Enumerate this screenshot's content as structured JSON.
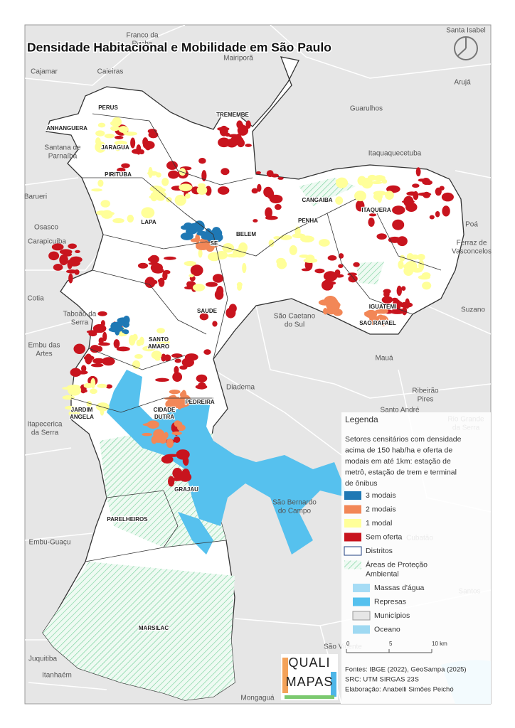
{
  "title": "Densidade Habitacional e Mobilidade em São Paulo",
  "municipalities": [
    {
      "lines": [
        "Franco da",
        "Rocha"
      ]
    },
    {
      "lines": [
        "Santa Isabel"
      ]
    },
    {
      "lines": [
        "Cajamar"
      ]
    },
    {
      "lines": [
        "Caieiras"
      ]
    },
    {
      "lines": [
        "Mairiporã"
      ]
    },
    {
      "lines": [
        "Arujá"
      ]
    },
    {
      "lines": [
        "Guarulhos"
      ]
    },
    {
      "lines": [
        "Santana de",
        "Parnaíba"
      ]
    },
    {
      "lines": [
        "Itaquaquecetuba"
      ]
    },
    {
      "lines": [
        "Barueri"
      ]
    },
    {
      "lines": [
        "Osasco"
      ]
    },
    {
      "lines": [
        "Carapicuíba"
      ]
    },
    {
      "lines": [
        "Poá"
      ]
    },
    {
      "lines": [
        "Ferraz de",
        "Vasconcelos"
      ]
    },
    {
      "lines": [
        "Cotia"
      ]
    },
    {
      "lines": [
        "Taboão da",
        "Serra"
      ]
    },
    {
      "lines": [
        "São Caetano",
        "do Sul"
      ]
    },
    {
      "lines": [
        "Suzano"
      ]
    },
    {
      "lines": [
        "Embu das",
        "Artes"
      ]
    },
    {
      "lines": [
        "Mauá"
      ]
    },
    {
      "lines": [
        "Diadema"
      ]
    },
    {
      "lines": [
        "Ribeirão",
        "Pires"
      ]
    },
    {
      "lines": [
        "Santo André"
      ]
    },
    {
      "lines": [
        "Rio Grande",
        "da Serra"
      ]
    },
    {
      "lines": [
        "Itapecerica",
        "da Serra"
      ]
    },
    {
      "lines": [
        "São Bernardo",
        "do Campo"
      ]
    },
    {
      "lines": [
        "Embu-Guaçu"
      ]
    },
    {
      "lines": [
        "Cubatão"
      ]
    },
    {
      "lines": [
        "Santos"
      ]
    },
    {
      "lines": [
        "Juquitiba"
      ]
    },
    {
      "lines": [
        "São Vicente"
      ]
    },
    {
      "lines": [
        "Itanhaém"
      ]
    },
    {
      "lines": [
        "Mongaguá"
      ]
    }
  ],
  "districts": [
    "PERUS",
    "ANHANGUERA",
    "JARAGUA",
    "TREMEMBE",
    "PIRITUBA",
    "CANGAIBA",
    "LAPA",
    "SE",
    "BELEM",
    "PENHA",
    "ITAQUERA",
    "SAUDE",
    "IGUATEMI",
    "SAO RAFAEL",
    "SANTO AMARO",
    "JARDIM ANGELA",
    "CIDADE DUTRA",
    "PEDREIRA",
    "GRAJAU",
    "PARELHEIROS",
    "MARSILAC"
  ],
  "legend": {
    "title": "Legenda",
    "description": [
      "Setores censitários com densidade",
      "acima de 150 hab/ha e oferta de",
      "modais em até 1km: estação de",
      "metrô, estação de trem e terminal",
      "de ônibus"
    ],
    "items": [
      {
        "lines": [
          "3 modais"
        ]
      },
      {
        "lines": [
          "2 modais"
        ]
      },
      {
        "lines": [
          "1 modal"
        ]
      },
      {
        "lines": [
          "Sem oferta"
        ]
      },
      {
        "lines": [
          "Distritos"
        ]
      },
      {
        "lines": [
          "Áreas de Proteção",
          "Ambiental"
        ]
      },
      {
        "lines": [
          "Massas d'água"
        ]
      },
      {
        "lines": [
          "Represas"
        ]
      },
      {
        "lines": [
          "Municípios"
        ]
      },
      {
        "lines": [
          "Oceano"
        ]
      }
    ]
  },
  "scale": [
    "0",
    "5",
    "10 km"
  ],
  "sources": [
    "Fontes: IBGE (2022), GeoSampa (2025)",
    "SRC: UTM SIRGAS 23S",
    "Elaboração: Anabelli Simões Peichó"
  ],
  "logo": [
    "QUALI",
    "MAPAS"
  ]
}
